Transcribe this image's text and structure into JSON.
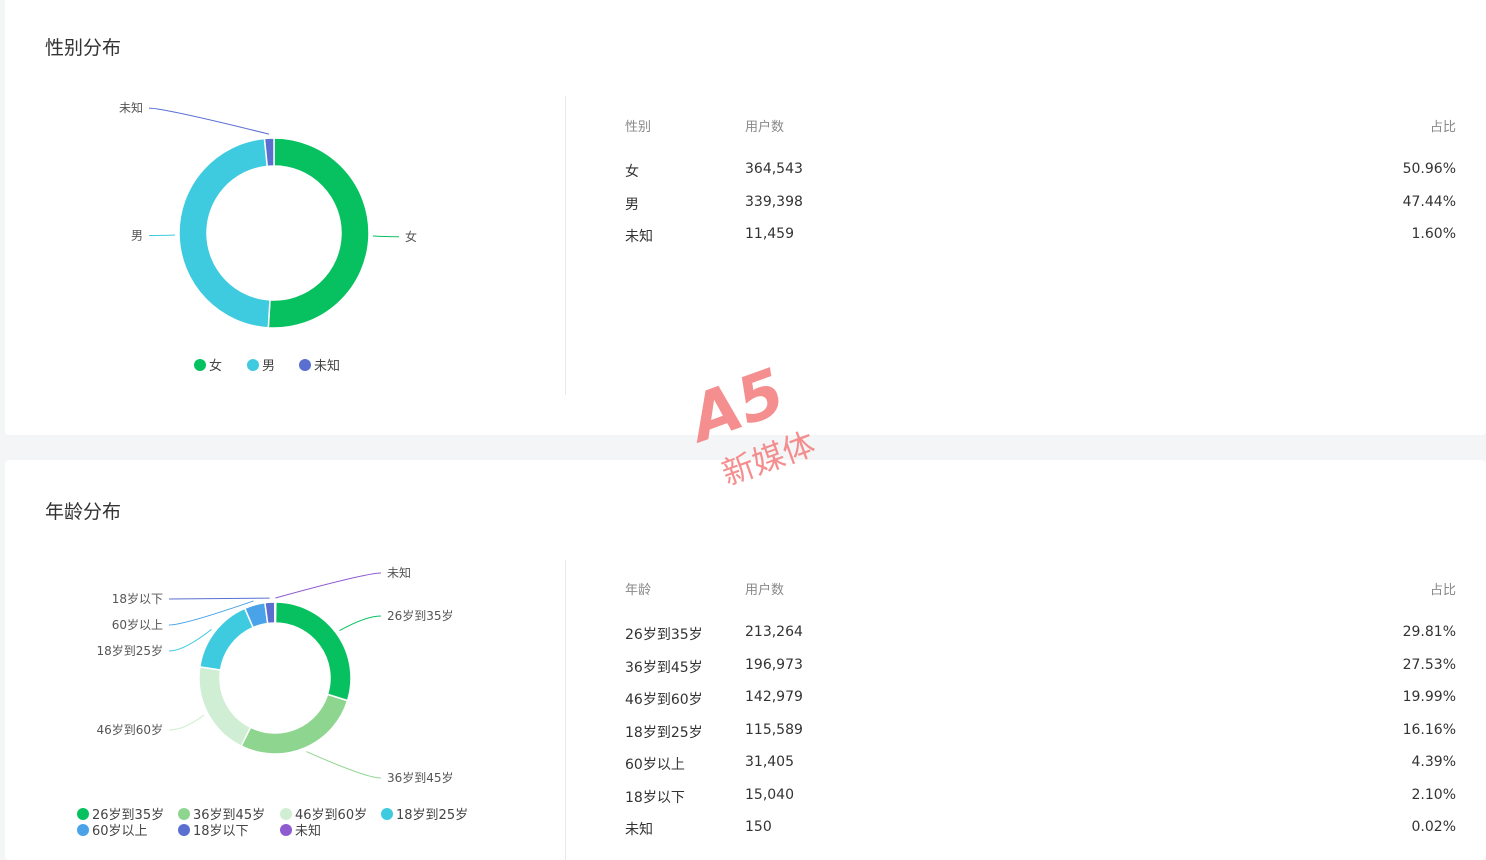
{
  "gender": {
    "title": "性别分布",
    "headers": [
      "性别",
      "用户数",
      "占比"
    ],
    "rows": [
      {
        "name": "女",
        "users": "364,543",
        "pct": "50.96%",
        "value": 364543,
        "color": "#07c160"
      },
      {
        "name": "男",
        "users": "339,398",
        "pct": "47.44%",
        "value": 339398,
        "color": "#3ecbe0"
      },
      {
        "name": "未知",
        "users": "11,459",
        "pct": "1.60%",
        "value": 11459,
        "color": "#5b6fd1"
      }
    ]
  },
  "age": {
    "title": "年龄分布",
    "headers": [
      "年龄",
      "用户数",
      "占比"
    ],
    "rows": [
      {
        "name": "26岁到35岁",
        "users": "213,264",
        "pct": "29.81%",
        "value": 213264,
        "color": "#07c160"
      },
      {
        "name": "36岁到45岁",
        "users": "196,973",
        "pct": "27.53%",
        "value": 196973,
        "color": "#8ed68f"
      },
      {
        "name": "46岁到60岁",
        "users": "142,979",
        "pct": "19.99%",
        "value": 142979,
        "color": "#cfeed3"
      },
      {
        "name": "18岁到25岁",
        "users": "115,589",
        "pct": "16.16%",
        "value": 115589,
        "color": "#3ecbe0"
      },
      {
        "name": "60岁以上",
        "users": "31,405",
        "pct": "4.39%",
        "value": 31405,
        "color": "#4aa3e8"
      },
      {
        "name": "18岁以下",
        "users": "15,040",
        "pct": "2.10%",
        "value": 15040,
        "color": "#5b6fd1"
      },
      {
        "name": "未知",
        "users": "150",
        "pct": "0.02%",
        "value": 150,
        "color": "#8e5bd1"
      }
    ]
  },
  "watermark": {
    "logo": "A5",
    "text": "新媒体",
    "color": "#f47c7c"
  }
}
